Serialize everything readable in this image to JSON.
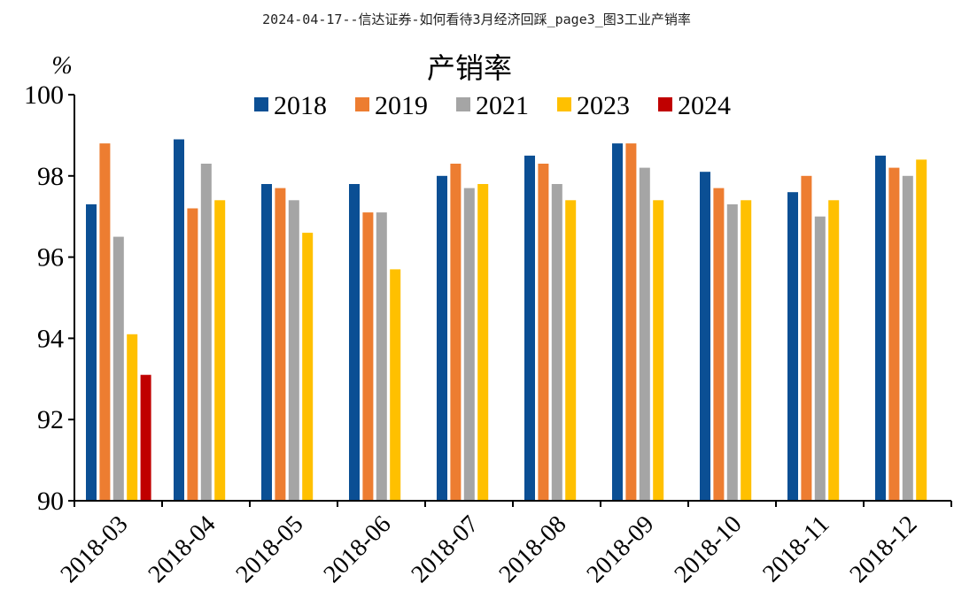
{
  "page_title": "2024-04-17--信达证券-如何看待3月经济回踩_page3_图3工业产销率",
  "chart_data": {
    "type": "bar",
    "title": "产销率",
    "ylabel": "%",
    "xlabel": "",
    "ylim": [
      90,
      100
    ],
    "yticks": [
      90,
      92,
      94,
      96,
      98,
      100
    ],
    "categories": [
      "2018-03",
      "2018-04",
      "2018-05",
      "2018-06",
      "2018-07",
      "2018-08",
      "2018-09",
      "2018-10",
      "2018-11",
      "2018-12"
    ],
    "legend_position": "top-center",
    "grid": false,
    "series": [
      {
        "name": "2018",
        "color": "#0b4f94",
        "values": [
          97.3,
          98.9,
          97.8,
          97.8,
          98.0,
          98.5,
          98.8,
          98.1,
          97.6,
          98.5
        ]
      },
      {
        "name": "2019",
        "color": "#ed7d31",
        "values": [
          98.8,
          97.2,
          97.7,
          97.1,
          98.3,
          98.3,
          98.8,
          97.7,
          98.0,
          98.2
        ]
      },
      {
        "name": "2021",
        "color": "#a5a5a5",
        "values": [
          96.5,
          98.3,
          97.4,
          97.1,
          97.7,
          97.8,
          98.2,
          97.3,
          97.0,
          98.0
        ]
      },
      {
        "name": "2023",
        "color": "#ffc000",
        "values": [
          94.1,
          97.4,
          96.6,
          95.7,
          97.8,
          97.4,
          97.4,
          97.4,
          97.4,
          98.4
        ]
      },
      {
        "name": "2024",
        "color": "#c00000",
        "values": [
          93.1,
          null,
          null,
          null,
          null,
          null,
          null,
          null,
          null,
          null
        ]
      }
    ]
  }
}
